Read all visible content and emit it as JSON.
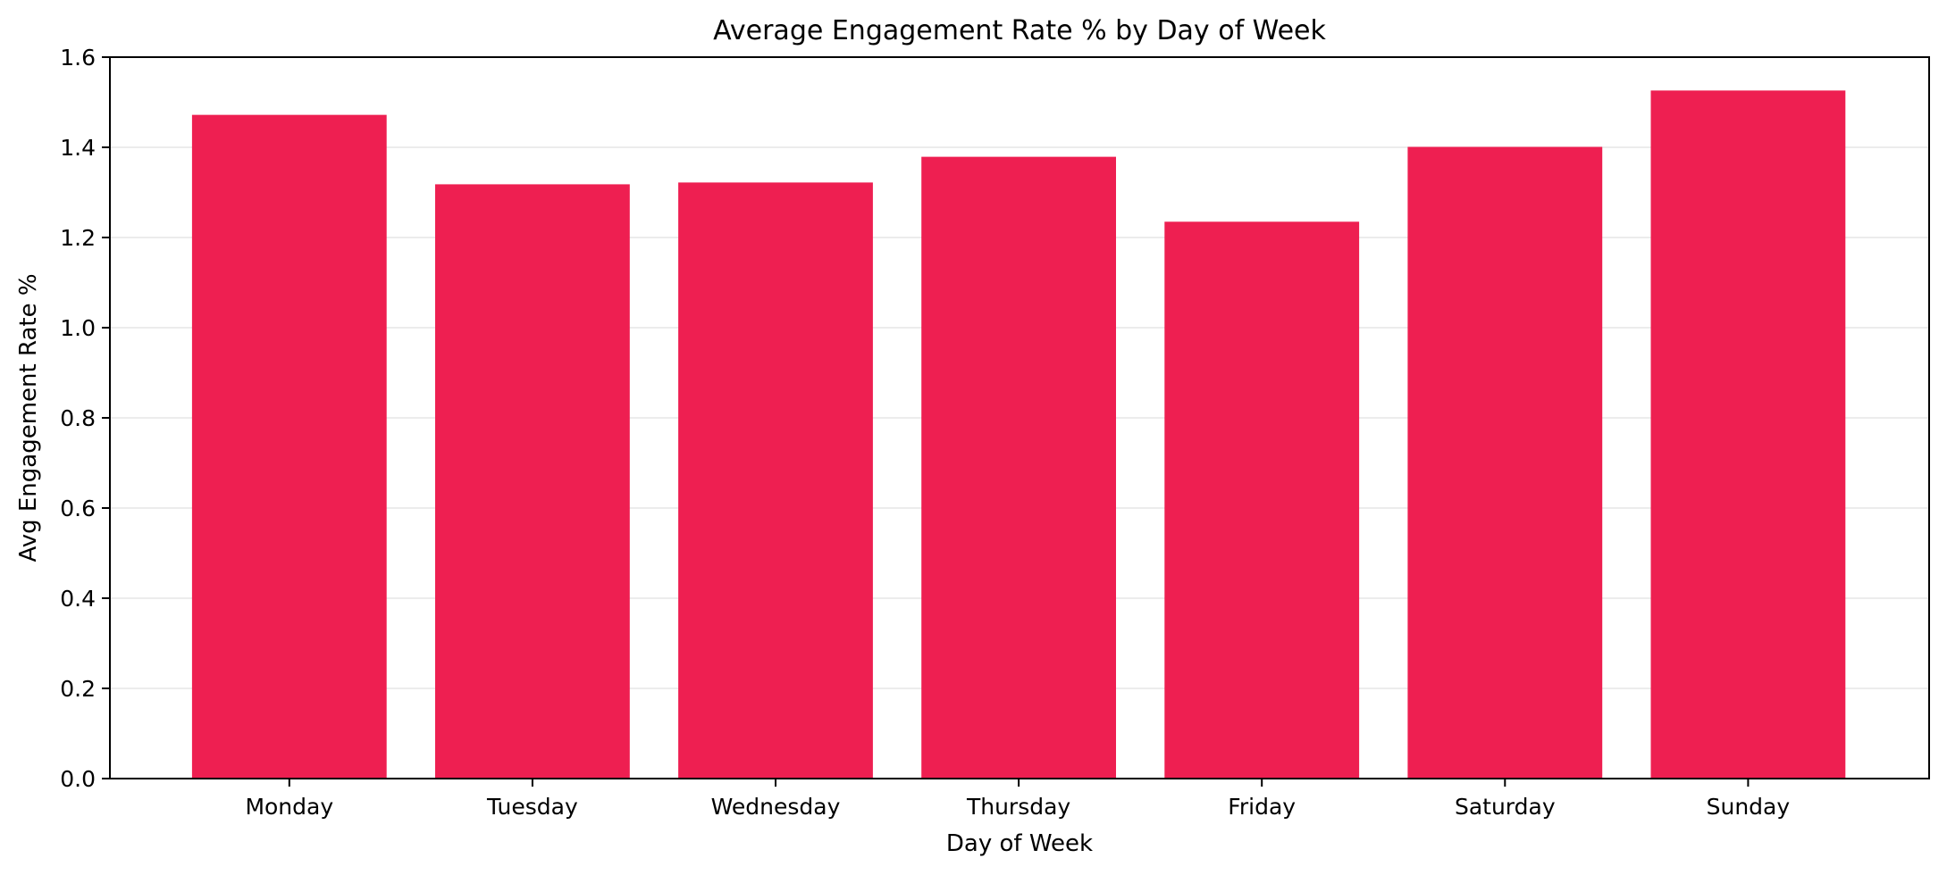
{
  "chart_data": {
    "type": "bar",
    "title": "Average Engagement Rate % by Day of Week",
    "xlabel": "Day of Week",
    "ylabel": "Avg Engagement Rate %",
    "categories": [
      "Monday",
      "Tuesday",
      "Wednesday",
      "Thursday",
      "Friday",
      "Saturday",
      "Sunday"
    ],
    "values": [
      1.472,
      1.318,
      1.322,
      1.379,
      1.235,
      1.401,
      1.526
    ],
    "ylim": [
      0,
      1.6
    ],
    "yticks": [
      "0.0",
      "0.2",
      "0.4",
      "0.6",
      "0.8",
      "1.0",
      "1.2",
      "1.4",
      "1.6"
    ],
    "grid": "horizontal",
    "bar_color": "#ee1f51"
  }
}
